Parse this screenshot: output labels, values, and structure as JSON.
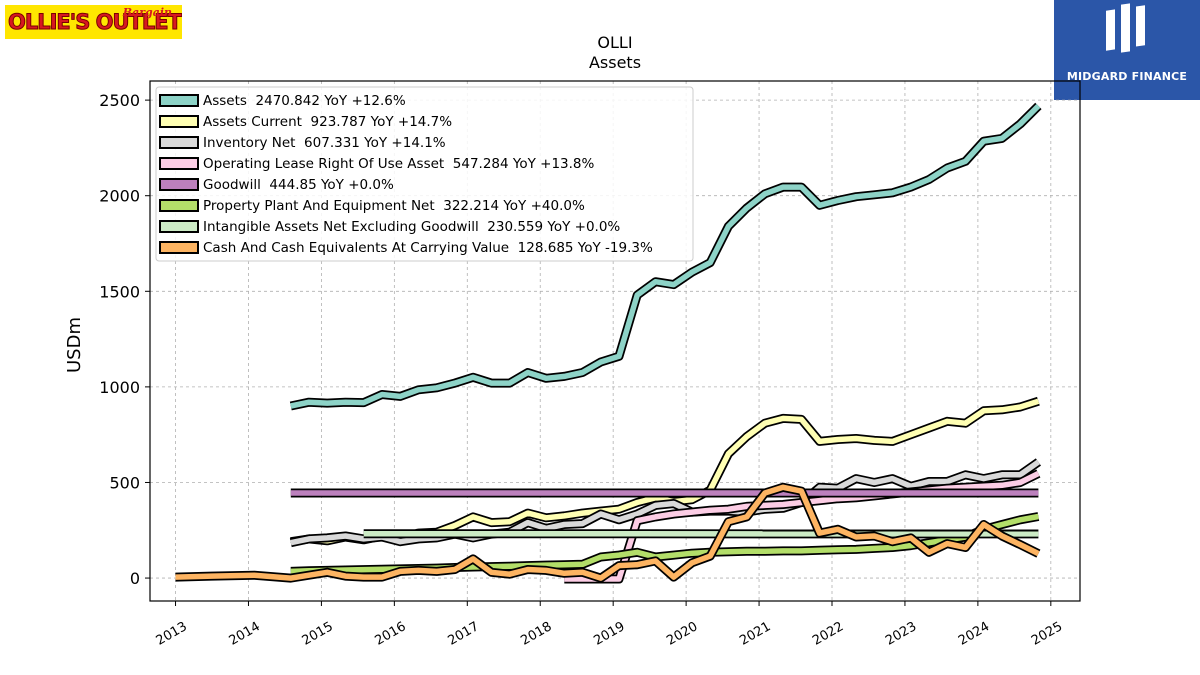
{
  "logos": {
    "left_main": "OLLIE'S OUTLET",
    "left_sub": "Bargain",
    "right_brand": "MIDGARD FINANCE"
  },
  "chart_data": {
    "type": "line",
    "title": "OLLI",
    "subtitle": "Assets",
    "ylabel": "USDm",
    "xlabel": "",
    "xlim": [
      2012.65,
      2025.4
    ],
    "ylim": [
      -120,
      2600
    ],
    "xticks": [
      "2013",
      "2014",
      "2015",
      "2016",
      "2017",
      "2018",
      "2019",
      "2020",
      "2021",
      "2022",
      "2023",
      "2024",
      "2025"
    ],
    "yticks": [
      0,
      500,
      1000,
      1500,
      2000,
      2500
    ],
    "grid": true,
    "legend_position": "top-left",
    "series": [
      {
        "name": "Assets  2470.842 YoY +12.6%",
        "color": "#8dd3c7",
        "x": [
          2014.58,
          2014.83,
          2015.08,
          2015.33,
          2015.58,
          2015.83,
          2016.08,
          2016.33,
          2016.58,
          2016.83,
          2017.08,
          2017.33,
          2017.58,
          2017.83,
          2018.08,
          2018.33,
          2018.58,
          2018.83,
          2019.08,
          2019.33,
          2019.58,
          2019.83,
          2020.08,
          2020.33,
          2020.58,
          2020.83,
          2021.08,
          2021.33,
          2021.58,
          2021.83,
          2022.08,
          2022.33,
          2022.58,
          2022.83,
          2023.08,
          2023.33,
          2023.58,
          2023.83,
          2024.08,
          2024.33,
          2024.58,
          2024.83
        ],
        "values": [
          900,
          920,
          915,
          920,
          918,
          960,
          950,
          985,
          995,
          1020,
          1050,
          1020,
          1020,
          1075,
          1045,
          1055,
          1075,
          1130,
          1160,
          1480,
          1550,
          1535,
          1600,
          1650,
          1840,
          1935,
          2010,
          2045,
          2045,
          1950,
          1975,
          1995,
          2005,
          2015,
          2045,
          2085,
          2145,
          2180,
          2285,
          2300,
          2375,
          2470
        ]
      },
      {
        "name": "Assets Current  923.787 YoY +14.7%",
        "color": "#ffffb3",
        "x": [
          2014.58,
          2014.83,
          2015.08,
          2015.33,
          2015.58,
          2015.83,
          2016.08,
          2016.33,
          2016.58,
          2016.83,
          2017.08,
          2017.33,
          2017.58,
          2017.83,
          2018.08,
          2018.33,
          2018.58,
          2018.83,
          2019.08,
          2019.33,
          2019.58,
          2019.83,
          2020.08,
          2020.33,
          2020.58,
          2020.83,
          2021.08,
          2021.33,
          2021.58,
          2021.83,
          2022.08,
          2022.33,
          2022.58,
          2022.83,
          2023.08,
          2023.33,
          2023.58,
          2023.83,
          2024.08,
          2024.33,
          2024.58,
          2024.83
        ],
        "values": [
          190,
          205,
          195,
          215,
          200,
          220,
          205,
          235,
          240,
          275,
          320,
          290,
          295,
          340,
          315,
          325,
          340,
          350,
          360,
          395,
          420,
          400,
          410,
          460,
          650,
          740,
          810,
          835,
          830,
          715,
          725,
          730,
          720,
          715,
          750,
          785,
          820,
          810,
          875,
          880,
          895,
          925
        ]
      },
      {
        "name": "Inventory Net  607.331 YoY +14.1%",
        "color": "#d9d9d9",
        "x": [
          2014.58,
          2014.83,
          2015.08,
          2015.33,
          2015.58,
          2015.83,
          2016.08,
          2016.33,
          2016.58,
          2016.83,
          2017.08,
          2017.33,
          2017.58,
          2017.83,
          2018.08,
          2018.33,
          2018.58,
          2018.83,
          2019.08,
          2019.33,
          2019.58,
          2019.83,
          2020.08,
          2020.33,
          2020.58,
          2020.83,
          2021.08,
          2021.33,
          2021.58,
          2021.83,
          2022.08,
          2022.33,
          2022.58,
          2022.83,
          2023.08,
          2023.33,
          2023.58,
          2023.83,
          2024.08,
          2024.33,
          2024.58,
          2024.83
        ],
        "values": [
          185,
          205,
          210,
          220,
          205,
          215,
          190,
          205,
          210,
          230,
          210,
          230,
          240,
          290,
          260,
          280,
          285,
          335,
          305,
          335,
          380,
          390,
          345,
          350,
          350,
          345,
          360,
          365,
          395,
          475,
          470,
          520,
          500,
          520,
          480,
          505,
          505,
          540,
          520,
          540,
          540,
          607
        ]
      },
      {
        "name": "Operating Lease Right Of Use Asset  547.284 YoY +13.8%",
        "color": "#fccde5",
        "x": [
          2018.33,
          2018.58,
          2018.83,
          2019.08,
          2019.33,
          2019.58,
          2019.83,
          2020.08,
          2020.33,
          2020.58,
          2020.83,
          2021.08,
          2021.33,
          2021.58,
          2021.83,
          2022.08,
          2022.33,
          2022.58,
          2022.83,
          2023.08,
          2023.33,
          2023.58,
          2023.83,
          2024.08,
          2024.33,
          2024.58,
          2024.83
        ],
        "values": [
          -5,
          -5,
          -5,
          -5,
          300,
          320,
          335,
          345,
          355,
          360,
          375,
          380,
          385,
          395,
          405,
          415,
          420,
          430,
          440,
          450,
          460,
          470,
          475,
          480,
          485,
          500,
          547
        ]
      },
      {
        "name": "Goodwill  444.85 YoY +0.0%",
        "color": "#bc80bd",
        "x": [
          2014.58,
          2024.83
        ],
        "values": [
          444.85,
          444.85
        ]
      },
      {
        "name": "Property Plant And Equipment Net  322.214 YoY +40.0%",
        "color": "#b3de69",
        "x": [
          2014.58,
          2014.83,
          2015.08,
          2015.33,
          2015.58,
          2015.83,
          2016.08,
          2016.33,
          2016.58,
          2016.83,
          2017.08,
          2017.33,
          2017.58,
          2017.83,
          2018.08,
          2018.33,
          2018.58,
          2018.83,
          2019.08,
          2019.33,
          2019.58,
          2019.83,
          2020.08,
          2020.33,
          2020.58,
          2020.83,
          2021.08,
          2021.33,
          2021.58,
          2021.83,
          2022.08,
          2022.33,
          2022.58,
          2022.83,
          2023.08,
          2023.33,
          2023.58,
          2023.83,
          2024.08,
          2024.33,
          2024.58,
          2024.83
        ],
        "values": [
          35,
          38,
          40,
          42,
          44,
          46,
          48,
          50,
          52,
          55,
          58,
          60,
          62,
          65,
          68,
          70,
          72,
          110,
          120,
          135,
          110,
          120,
          130,
          135,
          138,
          140,
          140,
          142,
          142,
          145,
          148,
          150,
          155,
          160,
          170,
          185,
          200,
          215,
          255,
          280,
          305,
          322
        ]
      },
      {
        "name": "Intangible Assets Net Excluding Goodwill  230.559 YoY +0.0%",
        "color": "#ccebc5",
        "x": [
          2015.58,
          2024.83
        ],
        "values": [
          232,
          231
        ]
      },
      {
        "name": "Cash And Cash Equivalents At Carrying Value  128.685 YoY -19.3%",
        "color": "#fdb462",
        "x": [
          2013.0,
          2013.5,
          2014.08,
          2014.58,
          2014.83,
          2015.08,
          2015.33,
          2015.58,
          2015.83,
          2016.08,
          2016.33,
          2016.58,
          2016.83,
          2017.08,
          2017.33,
          2017.58,
          2017.83,
          2018.08,
          2018.33,
          2018.58,
          2018.83,
          2019.08,
          2019.33,
          2019.58,
          2019.83,
          2020.08,
          2020.33,
          2020.58,
          2020.83,
          2021.08,
          2021.33,
          2021.58,
          2021.83,
          2022.08,
          2022.33,
          2022.58,
          2022.83,
          2023.08,
          2023.33,
          2023.58,
          2023.83,
          2024.08,
          2024.33,
          2024.58,
          2024.83
        ],
        "values": [
          5,
          10,
          15,
          0,
          15,
          30,
          10,
          5,
          5,
          35,
          40,
          35,
          45,
          100,
          30,
          20,
          45,
          40,
          25,
          30,
          0,
          65,
          70,
          90,
          5,
          80,
          115,
          295,
          320,
          445,
          475,
          455,
          235,
          255,
          215,
          220,
          190,
          210,
          135,
          180,
          160,
          280,
          220,
          175,
          128
        ]
      }
    ]
  }
}
